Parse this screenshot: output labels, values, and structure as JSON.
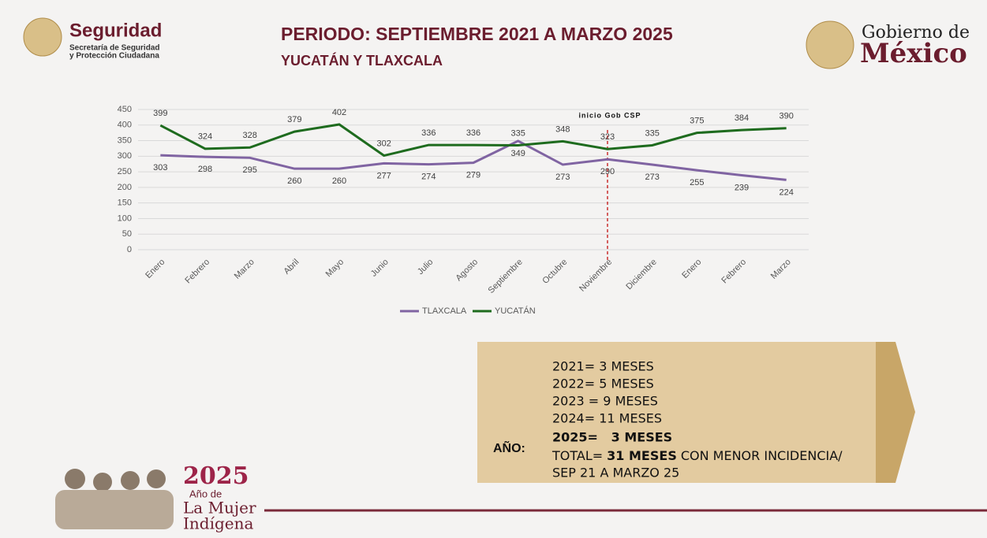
{
  "header": {
    "left_title": "Seguridad",
    "left_subtitle_1": "Secretaría de Seguridad",
    "left_subtitle_2": "y Protección Ciudadana",
    "right_title_1": "Gobierno de",
    "right_title_2": "México"
  },
  "title": "PERIODO: SEPTIEMBRE 2021 A MARZO 2025",
  "subtitle": "YUCATÁN Y TLAXCALA",
  "chart_data": {
    "type": "line",
    "categories": [
      "Enero",
      "Febrero",
      "Marzo",
      "Abril",
      "Mayo",
      "Junio",
      "Julio",
      "Agosto",
      "Septiembre",
      "Octubre",
      "Noviembre",
      "Diciembre",
      "Enero",
      "Febrero",
      "Marzo"
    ],
    "series": [
      {
        "name": "TLAXCALA",
        "color": "#8064a2",
        "values": [
          303,
          298,
          295,
          260,
          260,
          277,
          274,
          279,
          349,
          273,
          290,
          273,
          255,
          239,
          224
        ]
      },
      {
        "name": "YUCATÁN",
        "color": "#1e6b1e",
        "values": [
          399,
          324,
          328,
          379,
          402,
          302,
          336,
          336,
          335,
          348,
          323,
          335,
          375,
          384,
          390
        ]
      }
    ],
    "ylim": [
      0,
      450
    ],
    "yticks": [
      0,
      50,
      100,
      150,
      200,
      250,
      300,
      350,
      400,
      450
    ],
    "grid": true,
    "legend": "bottom",
    "annotation": {
      "text": "inicio Gob CSP",
      "at": "Noviembre",
      "color": "#c00000"
    }
  },
  "info": {
    "label": "AÑO:",
    "years": [
      "2021= 3 MESES",
      "2022= 5 MESES",
      "2023 = 9 MESES",
      "2024= 11 MESES"
    ],
    "highlight": "2025=   3 MESES",
    "total": {
      "prefix": "TOTAL=",
      "bold": "31 MESES",
      "suffix": "CON MENOR INCIDENCIA/"
    },
    "period": "SEP 21 A MARZO 25"
  },
  "footer": {
    "year": "2025",
    "line_1": "Año de",
    "line_2": "La Mujer",
    "line_3": "Indígena"
  }
}
